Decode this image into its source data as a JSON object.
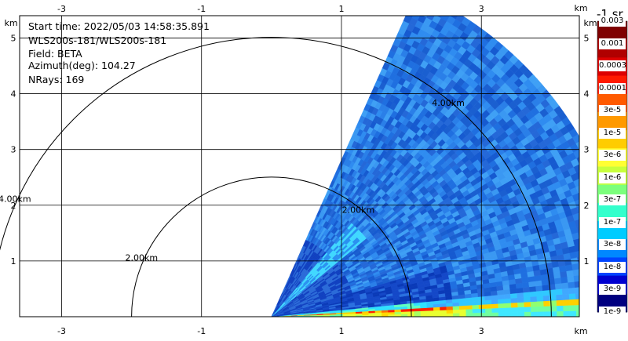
{
  "info": {
    "start_time": "Start time: 2022/05/03 14:58:35.891",
    "instrument": "WLS200s-181/WLS200s-181",
    "field": "Field: BETA",
    "azimuth": "Azimuth(deg): 104.27",
    "nrays": "NRays: 169"
  },
  "colorbar": {
    "title": "-1 sr",
    "labels": [
      "0.003",
      "0.001",
      "0.0003",
      "0.0001",
      "3e-5",
      "1e-5",
      "3e-6",
      "1e-6",
      "3e-7",
      "1e-7",
      "3e-8",
      "1e-8",
      "3e-9",
      "1e-9"
    ],
    "colors": [
      "#7f0000",
      "#b00000",
      "#dd0000",
      "#ff1a00",
      "#ff5a00",
      "#ff9900",
      "#ffcc00",
      "#ffff33",
      "#c8ff3c",
      "#7cff7c",
      "#33ffcc",
      "#00ccff",
      "#0088ff",
      "#0044ff",
      "#0000d0",
      "#000080"
    ]
  },
  "chart_data": {
    "type": "heatmap",
    "title": "",
    "xlabel": "km",
    "ylabel": "km",
    "x_ticks": [
      "-3",
      "-1",
      "1",
      "3"
    ],
    "y_ticks": [
      "1",
      "2",
      "3",
      "4",
      "5"
    ],
    "xlim": [
      -3.6,
      4.4
    ],
    "ylim": [
      0,
      5.4
    ],
    "range_rings": [
      {
        "radius_km": 2,
        "label": "2.00km"
      },
      {
        "radius_km": 4,
        "label": "4.00km"
      }
    ],
    "sector": {
      "az_start_deg": 0,
      "az_end_deg": 66,
      "max_range_km": 5.1
    },
    "grid": true
  }
}
